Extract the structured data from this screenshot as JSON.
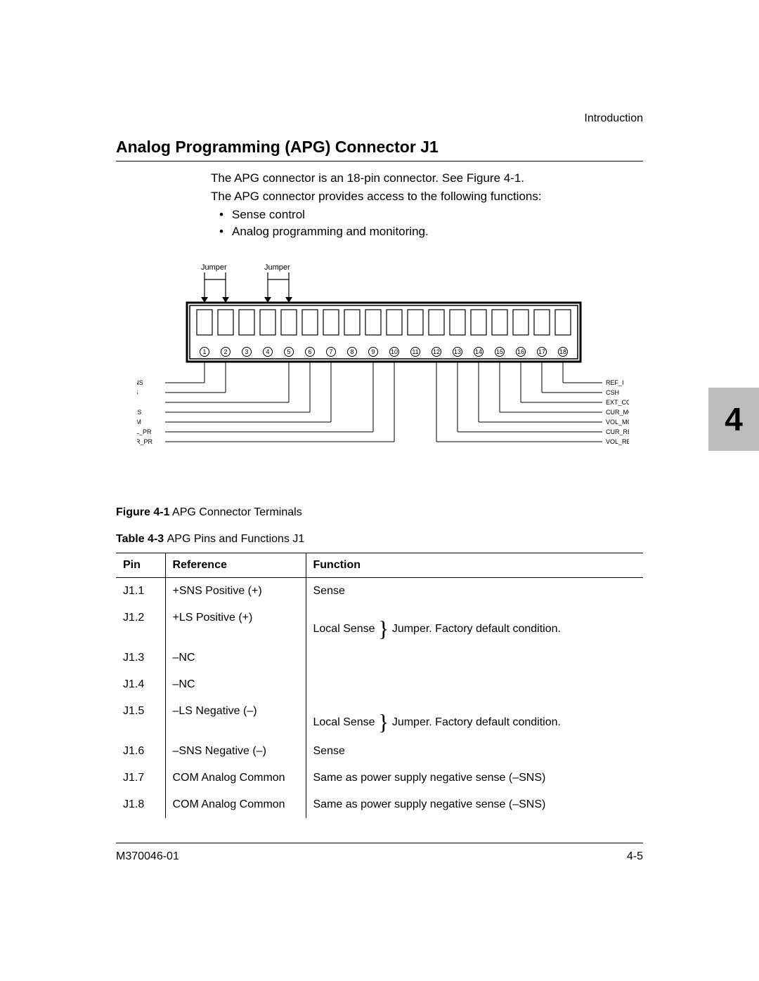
{
  "header": {
    "section_label": "Introduction"
  },
  "title": "Analog Programming (APG) Connector J1",
  "intro": {
    "line1": "The APG connector is an 18-pin connector. See Figure 4-1.",
    "line2": "The APG connector provides access to the following functions:",
    "bullets": [
      "Sense control",
      "Analog programming and monitoring."
    ]
  },
  "figure": {
    "caption_bold": "Figure 4-1",
    "caption_rest": "APG Connector Terminals",
    "jumper_label": "Jumper",
    "pin_count": 18,
    "left_labels": [
      "+SNS",
      "+LS",
      "-LS",
      "-SNS",
      "COM",
      "VOL_PR",
      "CUR_PR"
    ],
    "right_labels": [
      "REF_I",
      "CSH",
      "EXT_CC_CV",
      "CUR_MON",
      "VOL_MON",
      "CUR_RES_PR",
      "VOL_RES_PR"
    ],
    "colors": {
      "stroke": "#000000",
      "background": "#ffffff",
      "arrow_fill": "#000000"
    }
  },
  "table": {
    "caption_bold": "Table 4-3",
    "caption_rest": "APG Pins and Functions J1",
    "columns": [
      "Pin",
      "Reference",
      "Function"
    ],
    "rows": [
      {
        "pin": "J1.1",
        "ref": "+SNS Positive (+)",
        "func": "Sense"
      },
      {
        "pin": "J1.2",
        "ref": "+LS Positive (+)",
        "func": "Local Sense   Jumper. Factory default condition."
      },
      {
        "pin": "J1.3",
        "ref": "–NC",
        "func": ""
      },
      {
        "pin": "J1.4",
        "ref": "–NC",
        "func": ""
      },
      {
        "pin": "J1.5",
        "ref": "–LS Negative (–)",
        "func": "Local Sense   Jumper. Factory default condition."
      },
      {
        "pin": "J1.6",
        "ref": "–SNS Negative (–)",
        "func": "Sense"
      },
      {
        "pin": "J1.7",
        "ref": "COM Analog Common",
        "func": "Same as power supply negative sense (–SNS)"
      },
      {
        "pin": "J1.8",
        "ref": "COM Analog Common",
        "func": "Same as power supply negative sense (–SNS)"
      }
    ],
    "brace_rows": [
      1,
      4
    ]
  },
  "chapter_tab": "4",
  "footer": {
    "left": "M370046-01",
    "right": "4-5"
  },
  "style": {
    "title_fontsize": 23,
    "body_fontsize": 17,
    "caption_fontsize": 16,
    "footer_fontsize": 16,
    "tab_bg": "#bdbdbd"
  }
}
